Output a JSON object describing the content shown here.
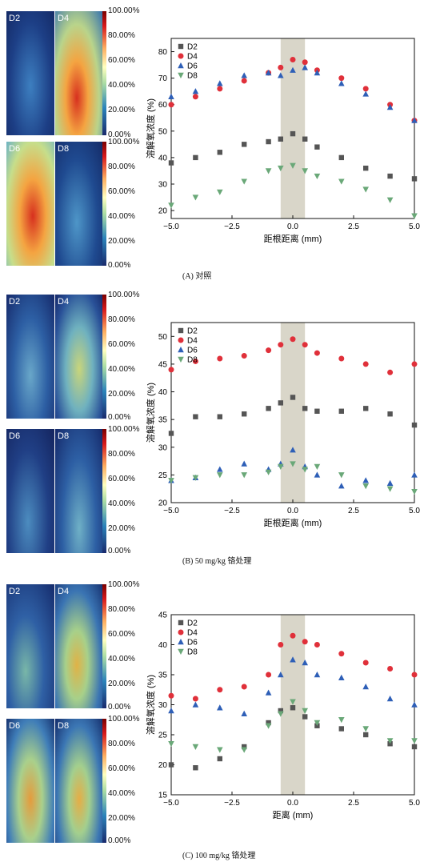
{
  "colorbar_ticks": [
    "100.00%",
    "80.00%",
    "60.00%",
    "40.00%",
    "20.00%",
    "0.00%"
  ],
  "panels": [
    {
      "map_labels": [
        "D2",
        "D4",
        "D6",
        "D8"
      ],
      "caption": "(A) 对照"
    },
    {
      "map_labels": [
        "D2",
        "D4",
        "D6",
        "D8"
      ],
      "caption": "(B) 50 mg/kg 铬处理"
    },
    {
      "map_labels": [
        "D2",
        "D4",
        "D6",
        "D8"
      ],
      "caption": "(C) 100 mg/kg 铬处理"
    }
  ],
  "colors": {
    "D2": "#555555",
    "D4": "#e0303a",
    "D6": "#2e5fb7",
    "D8": "#6aa878",
    "band": "#d9d6c9"
  },
  "chart_data": [
    {
      "type": "scatter",
      "xlabel": "距根距离 (mm)",
      "ylabel": "溶解氧浓度 (%)",
      "xlim": [
        -5,
        5
      ],
      "ylim": [
        17,
        85
      ],
      "xticks": [
        -5.0,
        -2.5,
        0.0,
        2.5,
        5.0
      ],
      "xtick_labels": [
        "−5.0",
        "−2.5",
        "0.0",
        "2.5",
        "5.0"
      ],
      "yticks": [
        20,
        30,
        40,
        50,
        60,
        70,
        80
      ],
      "band": [
        -0.5,
        0.5
      ],
      "legend_position": "top-left",
      "series": [
        {
          "name": "D2",
          "marker": "square",
          "x": [
            -5,
            -4,
            -3,
            -2,
            -1,
            -0.5,
            0,
            0.5,
            1,
            2,
            3,
            4,
            5
          ],
          "y": [
            38,
            40,
            42,
            45,
            46,
            47,
            49,
            47,
            44,
            40,
            36,
            33,
            32
          ]
        },
        {
          "name": "D4",
          "marker": "circle",
          "x": [
            -5,
            -4,
            -3,
            -2,
            -1,
            -0.5,
            0,
            0.5,
            1,
            2,
            3,
            4,
            5
          ],
          "y": [
            60,
            63,
            66,
            69,
            72,
            74,
            77,
            76,
            73,
            70,
            66,
            60,
            54
          ]
        },
        {
          "name": "D6",
          "marker": "triangle-up",
          "x": [
            -5,
            -4,
            -3,
            -2,
            -1,
            -0.5,
            0,
            0.5,
            1,
            2,
            3,
            4,
            5
          ],
          "y": [
            63,
            65,
            68,
            71,
            72,
            71,
            73,
            74,
            72,
            68,
            64,
            59,
            54
          ]
        },
        {
          "name": "D8",
          "marker": "triangle-down",
          "x": [
            -5,
            -4,
            -3,
            -2,
            -1,
            -0.5,
            0,
            0.5,
            1,
            2,
            3,
            4,
            5
          ],
          "y": [
            22,
            25,
            27,
            31,
            35,
            36,
            37,
            35,
            33,
            31,
            28,
            24,
            18
          ]
        }
      ]
    },
    {
      "type": "scatter",
      "xlabel": "距根距离 (mm)",
      "ylabel": "溶解氧浓度 (%)",
      "xlim": [
        -5,
        5
      ],
      "ylim": [
        20,
        52.5
      ],
      "xticks": [
        -5.0,
        -2.5,
        0.0,
        2.5,
        5.0
      ],
      "xtick_labels": [
        "−5.0",
        "−2.5",
        "0.0",
        "2.5",
        "5.0"
      ],
      "yticks": [
        20,
        25,
        30,
        35,
        40,
        45,
        50
      ],
      "band": [
        -0.5,
        0.5
      ],
      "legend_position": "top-left",
      "series": [
        {
          "name": "D2",
          "marker": "square",
          "x": [
            -5,
            -4,
            -3,
            -2,
            -1,
            -0.5,
            0,
            0.5,
            1,
            2,
            3,
            4,
            5
          ],
          "y": [
            32.5,
            35.5,
            35.5,
            36,
            37,
            38,
            39,
            37,
            36.5,
            36.5,
            37,
            36,
            34
          ]
        },
        {
          "name": "D4",
          "marker": "circle",
          "x": [
            -5,
            -4,
            -3,
            -2,
            -1,
            -0.5,
            0,
            0.5,
            1,
            2,
            3,
            4,
            5
          ],
          "y": [
            44,
            45.5,
            46,
            46.5,
            47.5,
            48.5,
            49.5,
            48.5,
            47,
            46,
            45,
            43.5,
            45
          ]
        },
        {
          "name": "D6",
          "marker": "triangle-up",
          "x": [
            -5,
            -4,
            -3,
            -2,
            -1,
            -0.5,
            0,
            0.5,
            1,
            2,
            3,
            4,
            5
          ],
          "y": [
            24,
            24.5,
            26,
            27,
            26,
            27,
            29.5,
            26.5,
            25,
            23,
            24,
            23.5,
            25
          ]
        },
        {
          "name": "D8",
          "marker": "triangle-down",
          "x": [
            -5,
            -4,
            -3,
            -2,
            -1,
            -0.5,
            0,
            0.5,
            1,
            2,
            3,
            4,
            5
          ],
          "y": [
            24,
            24.5,
            25,
            25,
            25.5,
            26.5,
            27,
            26,
            26.5,
            25,
            23,
            22.5,
            22
          ]
        }
      ]
    },
    {
      "type": "scatter",
      "xlabel": "距离 (mm)",
      "ylabel": "溶解氧浓度 (%)",
      "xlim": [
        -5,
        5
      ],
      "ylim": [
        15,
        45
      ],
      "xticks": [
        -5.0,
        -2.5,
        0.0,
        2.5,
        5.0
      ],
      "xtick_labels": [
        "−5.0",
        "−2.5",
        "0.0",
        "2.5",
        "5.0"
      ],
      "yticks": [
        15,
        20,
        25,
        30,
        35,
        40,
        45
      ],
      "band": [
        -0.5,
        0.5
      ],
      "legend_position": "top-left",
      "series": [
        {
          "name": "D2",
          "marker": "square",
          "x": [
            -5,
            -4,
            -3,
            -2,
            -1,
            -0.5,
            0,
            0.5,
            1,
            2,
            3,
            4,
            5
          ],
          "y": [
            20,
            19.5,
            21,
            23,
            27,
            29,
            29.5,
            28,
            26.5,
            26,
            25,
            23.5,
            23
          ]
        },
        {
          "name": "D4",
          "marker": "circle",
          "x": [
            -5,
            -4,
            -3,
            -2,
            -1,
            -0.5,
            0,
            0.5,
            1,
            2,
            3,
            4,
            5
          ],
          "y": [
            31.5,
            31,
            32.5,
            33,
            35,
            40,
            41.5,
            40.5,
            40,
            38.5,
            37,
            36,
            35
          ]
        },
        {
          "name": "D6",
          "marker": "triangle-up",
          "x": [
            -5,
            -4,
            -3,
            -2,
            -1,
            -0.5,
            0,
            0.5,
            1,
            2,
            3,
            4,
            5
          ],
          "y": [
            29,
            30,
            29.5,
            28.5,
            32,
            35,
            37.5,
            37,
            35,
            34.5,
            33,
            31,
            30
          ]
        },
        {
          "name": "D8",
          "marker": "triangle-down",
          "x": [
            -5,
            -4,
            -3,
            -2,
            -1,
            -0.5,
            0,
            0.5,
            1,
            2,
            3,
            4,
            5
          ],
          "y": [
            23.5,
            23,
            22.5,
            22.5,
            26.5,
            28.5,
            30.5,
            29,
            27,
            27.5,
            26,
            24,
            24
          ]
        }
      ]
    }
  ]
}
